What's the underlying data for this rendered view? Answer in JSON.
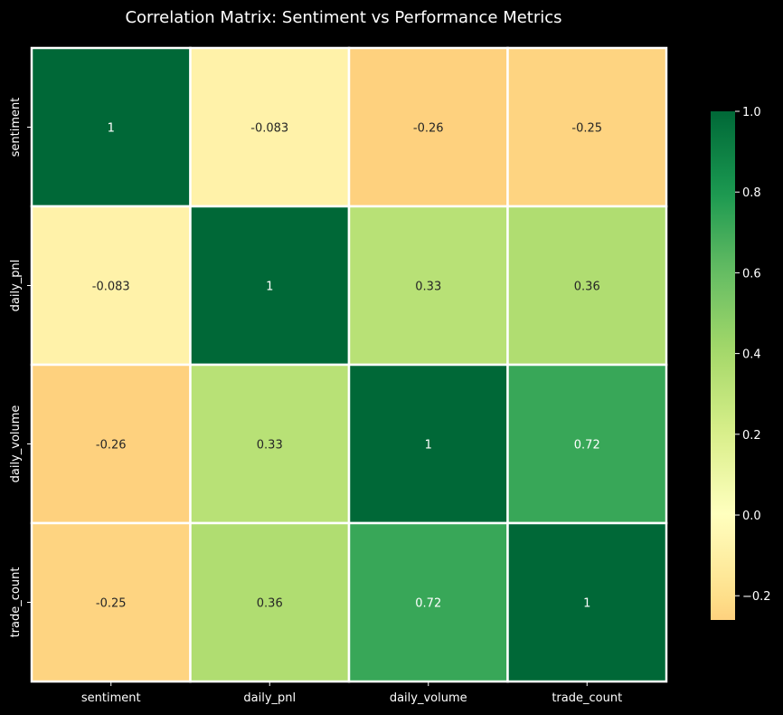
{
  "chart_data": {
    "type": "heatmap",
    "title": "Correlation Matrix: Sentiment vs Performance Metrics",
    "x_labels": [
      "sentiment",
      "daily_pnl",
      "daily_volume",
      "trade_count"
    ],
    "y_labels": [
      "sentiment",
      "daily_pnl",
      "daily_volume",
      "trade_count"
    ],
    "values": [
      [
        1,
        -0.083,
        -0.26,
        -0.25
      ],
      [
        -0.083,
        1,
        0.33,
        0.36
      ],
      [
        -0.26,
        0.33,
        1,
        0.72
      ],
      [
        -0.25,
        0.36,
        0.72,
        1
      ]
    ],
    "annotations": [
      [
        "1",
        "-0.083",
        "-0.26",
        "-0.25"
      ],
      [
        "-0.083",
        "1",
        "0.33",
        "0.36"
      ],
      [
        "-0.26",
        "0.33",
        "1",
        "0.72"
      ],
      [
        "-0.25",
        "0.36",
        "0.72",
        "1"
      ]
    ],
    "colormap": "RdYlGn",
    "color_range": [
      -0.26,
      1
    ],
    "colorbar": {
      "ticks": [
        1.0,
        0.8,
        0.6,
        0.4,
        0.2,
        0.0,
        -0.2
      ],
      "tick_labels": [
        "1.0",
        "0.8",
        "0.6",
        "0.4",
        "0.2",
        "0.0",
        "−0.2"
      ]
    },
    "colors": {
      "background": "#000000",
      "cell_border": "#ffffff",
      "text": "#ffffff"
    }
  }
}
